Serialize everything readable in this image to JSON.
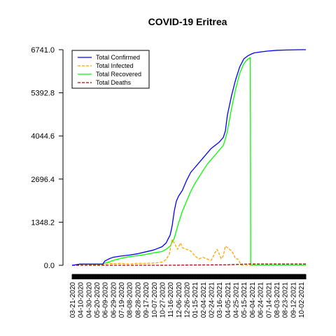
{
  "chart_data": {
    "type": "line",
    "title": "COVID-19 Eritrea",
    "xlabel": "",
    "ylabel": "",
    "ylim": [
      0,
      6741.0
    ],
    "y_ticks": [
      "0.0",
      "1348.2",
      "2696.4",
      "4044.6",
      "5392.8",
      "6741.0"
    ],
    "x_tick_labels": [
      "03-21-2020",
      "04-10-2020",
      "04-30-2020",
      "05-20-2020",
      "06-09-2020",
      "06-29-2020",
      "07-19-2020",
      "08-08-2020",
      "08-28-2020",
      "09-17-2020",
      "10-07-2020",
      "10-27-2020",
      "11-16-2020",
      "12-06-2020",
      "12-26-2020",
      "01-15-2021",
      "02-04-2021",
      "02-24-2021",
      "03-16-2021",
      "04-05-2021",
      "04-25-2021",
      "05-15-2021",
      "06-04-2021",
      "06-24-2021",
      "07-14-2021",
      "08-03-2021",
      "08-23-2021",
      "09-12-2021",
      "10-02-2021"
    ],
    "legend_position": "top-left",
    "x_range_days": [
      0,
      572
    ],
    "series": [
      {
        "name": "Total Confirmed",
        "color": "#0000ff",
        "dash": "solid",
        "points": [
          [
            0,
            0
          ],
          [
            20,
            39
          ],
          [
            40,
            39
          ],
          [
            60,
            39
          ],
          [
            75,
            39
          ],
          [
            80,
            130
          ],
          [
            90,
            200
          ],
          [
            100,
            250
          ],
          [
            120,
            290
          ],
          [
            140,
            320
          ],
          [
            160,
            360
          ],
          [
            180,
            420
          ],
          [
            200,
            480
          ],
          [
            220,
            580
          ],
          [
            230,
            700
          ],
          [
            240,
            950
          ],
          [
            245,
            1250
          ],
          [
            250,
            1700
          ],
          [
            255,
            2000
          ],
          [
            260,
            2150
          ],
          [
            270,
            2350
          ],
          [
            280,
            2650
          ],
          [
            290,
            2900
          ],
          [
            300,
            3050
          ],
          [
            310,
            3200
          ],
          [
            320,
            3350
          ],
          [
            330,
            3500
          ],
          [
            340,
            3650
          ],
          [
            350,
            3750
          ],
          [
            360,
            3850
          ],
          [
            370,
            4000
          ],
          [
            375,
            4200
          ],
          [
            380,
            4700
          ],
          [
            390,
            5300
          ],
          [
            400,
            5800
          ],
          [
            410,
            6200
          ],
          [
            420,
            6450
          ],
          [
            430,
            6550
          ],
          [
            436,
            6590
          ],
          [
            445,
            6640
          ],
          [
            460,
            6670
          ],
          [
            480,
            6700
          ],
          [
            500,
            6720
          ],
          [
            520,
            6730
          ],
          [
            540,
            6736
          ],
          [
            560,
            6741
          ],
          [
            572,
            6741
          ]
        ]
      },
      {
        "name": "Total Infected",
        "color": "#ffa500",
        "dash": "dashed",
        "points": [
          [
            0,
            0
          ],
          [
            20,
            30
          ],
          [
            40,
            30
          ],
          [
            60,
            10
          ],
          [
            80,
            20
          ],
          [
            90,
            60
          ],
          [
            100,
            50
          ],
          [
            120,
            60
          ],
          [
            140,
            40
          ],
          [
            160,
            60
          ],
          [
            180,
            60
          ],
          [
            200,
            70
          ],
          [
            210,
            80
          ],
          [
            220,
            100
          ],
          [
            230,
            180
          ],
          [
            238,
            350
          ],
          [
            242,
            650
          ],
          [
            245,
            800
          ],
          [
            250,
            700
          ],
          [
            258,
            500
          ],
          [
            265,
            700
          ],
          [
            270,
            550
          ],
          [
            280,
            500
          ],
          [
            290,
            450
          ],
          [
            300,
            300
          ],
          [
            310,
            200
          ],
          [
            320,
            250
          ],
          [
            330,
            200
          ],
          [
            340,
            150
          ],
          [
            350,
            400
          ],
          [
            355,
            500
          ],
          [
            360,
            350
          ],
          [
            365,
            200
          ],
          [
            370,
            300
          ],
          [
            375,
            600
          ],
          [
            380,
            550
          ],
          [
            390,
            450
          ],
          [
            395,
            350
          ],
          [
            400,
            200
          ],
          [
            405,
            200
          ],
          [
            410,
            100
          ],
          [
            412,
            50
          ],
          [
            415,
            0
          ],
          [
            436,
            0
          ],
          [
            437,
            30
          ],
          [
            460,
            40
          ],
          [
            480,
            40
          ],
          [
            500,
            40
          ],
          [
            520,
            40
          ],
          [
            540,
            40
          ],
          [
            572,
            40
          ]
        ]
      },
      {
        "name": "Total Recovered",
        "color": "#00ff00",
        "dash": "solid",
        "points": [
          [
            0,
            0
          ],
          [
            20,
            39
          ],
          [
            40,
            39
          ],
          [
            60,
            39
          ],
          [
            75,
            39
          ],
          [
            80,
            70
          ],
          [
            90,
            100
          ],
          [
            100,
            150
          ],
          [
            120,
            220
          ],
          [
            140,
            270
          ],
          [
            160,
            300
          ],
          [
            180,
            340
          ],
          [
            200,
            390
          ],
          [
            220,
            430
          ],
          [
            230,
            500
          ],
          [
            240,
            600
          ],
          [
            250,
            850
          ],
          [
            260,
            1300
          ],
          [
            265,
            1500
          ],
          [
            270,
            1700
          ],
          [
            280,
            2000
          ],
          [
            290,
            2300
          ],
          [
            300,
            2550
          ],
          [
            310,
            2750
          ],
          [
            320,
            2950
          ],
          [
            330,
            3150
          ],
          [
            340,
            3300
          ],
          [
            350,
            3450
          ],
          [
            360,
            3600
          ],
          [
            370,
            3750
          ],
          [
            375,
            3950
          ],
          [
            380,
            4200
          ],
          [
            390,
            4900
          ],
          [
            400,
            5500
          ],
          [
            410,
            6000
          ],
          [
            420,
            6300
          ],
          [
            430,
            6450
          ],
          [
            436,
            6490
          ],
          [
            437,
            0
          ],
          [
            460,
            0
          ],
          [
            480,
            0
          ],
          [
            500,
            0
          ],
          [
            520,
            0
          ],
          [
            540,
            0
          ],
          [
            572,
            0
          ]
        ]
      },
      {
        "name": "Total Deaths",
        "color": "#c00000",
        "dash": "dashed",
        "points": [
          [
            0,
            0
          ],
          [
            100,
            0
          ],
          [
            200,
            0
          ],
          [
            220,
            1
          ],
          [
            250,
            3
          ],
          [
            280,
            7
          ],
          [
            310,
            10
          ],
          [
            340,
            12
          ],
          [
            370,
            14
          ],
          [
            390,
            20
          ],
          [
            410,
            30
          ],
          [
            430,
            40
          ],
          [
            436,
            40
          ],
          [
            460,
            40
          ],
          [
            500,
            40
          ],
          [
            540,
            40
          ],
          [
            572,
            40
          ]
        ]
      }
    ]
  }
}
